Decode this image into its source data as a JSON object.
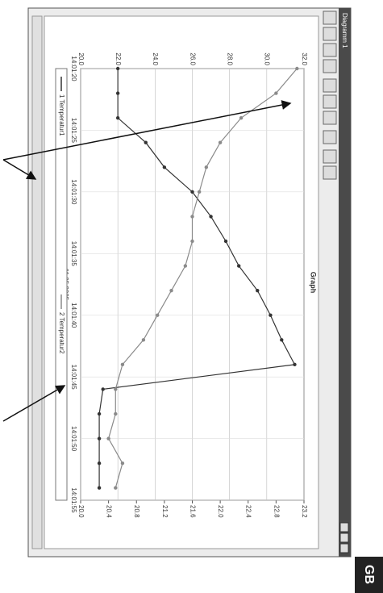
{
  "window": {
    "title": "Diagramm 1",
    "badge": "GB"
  },
  "chart_data": {
    "type": "line",
    "title": "Graph",
    "xlabel": "11.05.2005",
    "x": [
      0,
      2,
      4,
      6,
      8,
      10,
      12,
      14,
      16,
      18,
      20,
      22,
      24,
      26,
      28,
      30,
      32,
      34
    ],
    "xlim": [
      0,
      35
    ],
    "xticks": [
      {
        "value": 0,
        "label": "14:01:20"
      },
      {
        "value": 5,
        "label": "14:01:25"
      },
      {
        "value": 10,
        "label": "14:01:30"
      },
      {
        "value": 15,
        "label": "14:01:35"
      },
      {
        "value": 20,
        "label": "14:01:40"
      },
      {
        "value": 25,
        "label": "14:01:45"
      },
      {
        "value": 30,
        "label": "14:01:50"
      },
      {
        "value": 35,
        "label": "14:01:55"
      }
    ],
    "ylim": [
      20,
      32
    ],
    "yticks": [
      {
        "value": 20,
        "label": "20.0"
      },
      {
        "value": 22,
        "label": "22.0"
      },
      {
        "value": 24,
        "label": "24.0"
      },
      {
        "value": 26,
        "label": "26.0"
      },
      {
        "value": 28,
        "label": "28.0"
      },
      {
        "value": 30,
        "label": "30.0"
      },
      {
        "value": 32,
        "label": "32.0"
      }
    ],
    "y2lim": [
      20,
      23.2
    ],
    "y2ticks": [
      {
        "value": 20,
        "label": "20.0"
      },
      {
        "value": 20.4,
        "label": "20.4"
      },
      {
        "value": 20.8,
        "label": "20.8"
      },
      {
        "value": 21.2,
        "label": "21.2"
      },
      {
        "value": 21.6,
        "label": "21.6"
      },
      {
        "value": 22,
        "label": "22.0"
      },
      {
        "value": 22.4,
        "label": "22.4"
      },
      {
        "value": 22.8,
        "label": "22.8"
      },
      {
        "value": 23.2,
        "label": "23.2"
      }
    ],
    "grid": true,
    "series": [
      {
        "name": "1 Temperatur1",
        "color": "#333333",
        "values": [
          22.0,
          22.0,
          22.0,
          23.5,
          24.5,
          26.0,
          27.0,
          27.8,
          28.5,
          29.5,
          30.2,
          30.8,
          31.5,
          21.2,
          21.0,
          21.0,
          21.0,
          21.0
        ]
      },
      {
        "name": "2 Temperatur2",
        "color": "#8a8a8a",
        "axis": "y2",
        "values": [
          23.1,
          22.8,
          22.3,
          22.0,
          21.8,
          21.7,
          21.6,
          21.6,
          21.5,
          21.3,
          21.1,
          20.9,
          20.6,
          20.5,
          20.5,
          20.4,
          20.6,
          20.5
        ]
      }
    ]
  }
}
